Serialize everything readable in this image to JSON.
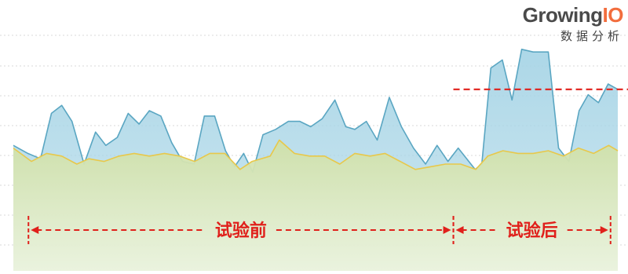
{
  "brand": {
    "name_main": "Growing",
    "name_accent": "IO",
    "subtitle": "数据分析"
  },
  "colors": {
    "upper_area": "#a8d5e6",
    "upper_line": "#5aa6c2",
    "lower_area": "#cfe0a8",
    "lower_line": "#e8c84a",
    "threshold": "#e0201b",
    "grid": "#d8d8d8",
    "accent": "#f26d3d"
  },
  "chart_data": {
    "type": "area",
    "title": "",
    "xlabel": "",
    "ylabel": "",
    "grid": true,
    "xlim": [
      0,
      100
    ],
    "ylim": [
      0,
      100
    ],
    "series": [
      {
        "values": [
          [
            0,
            47
          ],
          [
            2.4,
            44
          ],
          [
            4.5,
            42
          ],
          [
            6.3,
            59
          ],
          [
            8,
            62
          ],
          [
            9.7,
            56
          ],
          [
            11.7,
            40
          ],
          [
            13.6,
            52
          ],
          [
            15.3,
            47
          ],
          [
            17.2,
            50
          ],
          [
            19,
            59
          ],
          [
            20.8,
            55
          ],
          [
            22.5,
            60
          ],
          [
            24.4,
            58
          ],
          [
            26.2,
            48
          ],
          [
            28,
            41
          ],
          [
            29.9,
            40
          ],
          [
            31.6,
            58
          ],
          [
            33.3,
            58
          ],
          [
            35.1,
            45
          ],
          [
            36.6,
            39
          ],
          [
            38.1,
            44
          ],
          [
            39.6,
            37
          ],
          [
            41.3,
            51
          ],
          [
            43.4,
            53
          ],
          [
            45.5,
            56
          ],
          [
            47.4,
            56
          ],
          [
            49.2,
            54
          ],
          [
            51.1,
            57
          ],
          [
            53.2,
            64
          ],
          [
            55,
            54
          ],
          [
            56.5,
            53
          ],
          [
            58.4,
            56
          ],
          [
            60.2,
            49
          ],
          [
            62.2,
            65
          ],
          [
            64.2,
            54
          ],
          [
            66.2,
            46
          ],
          [
            68.2,
            40
          ],
          [
            70.1,
            47
          ],
          [
            71.9,
            41
          ],
          [
            73.6,
            46
          ],
          [
            76.4,
            38
          ],
          [
            77.5,
            40
          ],
          [
            79,
            76
          ],
          [
            80.9,
            79
          ],
          [
            82.5,
            64
          ],
          [
            84.1,
            83
          ],
          [
            86,
            82
          ],
          [
            88.5,
            82
          ],
          [
            90.2,
            46
          ],
          [
            91.9,
            41
          ],
          [
            93.6,
            60
          ],
          [
            95.1,
            66
          ],
          [
            96.8,
            63
          ],
          [
            98.4,
            70
          ],
          [
            100,
            68
          ]
        ]
      },
      {
        "values": [
          [
            0,
            46
          ],
          [
            3,
            41
          ],
          [
            5.5,
            44
          ],
          [
            8,
            43
          ],
          [
            10.5,
            40
          ],
          [
            12.5,
            42
          ],
          [
            15,
            41
          ],
          [
            17.5,
            43
          ],
          [
            20,
            44
          ],
          [
            22.5,
            43
          ],
          [
            25,
            44
          ],
          [
            27.5,
            43
          ],
          [
            30,
            41
          ],
          [
            32.5,
            44
          ],
          [
            35,
            44
          ],
          [
            37.5,
            38
          ],
          [
            39.5,
            41
          ],
          [
            42.5,
            43
          ],
          [
            44,
            49
          ],
          [
            46.5,
            44
          ],
          [
            49,
            43
          ],
          [
            51.5,
            43
          ],
          [
            54,
            40
          ],
          [
            56.5,
            44
          ],
          [
            59,
            43
          ],
          [
            61.5,
            44
          ],
          [
            64,
            41
          ],
          [
            66.5,
            38
          ],
          [
            69,
            39
          ],
          [
            71.5,
            40
          ],
          [
            74,
            40
          ],
          [
            76.5,
            38
          ],
          [
            78.5,
            43
          ],
          [
            81,
            45
          ],
          [
            83.5,
            44
          ],
          [
            86,
            44
          ],
          [
            88.5,
            45
          ],
          [
            91,
            43
          ],
          [
            93.5,
            46
          ],
          [
            96,
            44
          ],
          [
            98.5,
            47
          ],
          [
            100,
            45
          ]
        ]
      }
    ],
    "threshold_y": 68,
    "annotations": [
      {
        "label": "试验前",
        "x_start": 2.5,
        "x_end": 72.8
      },
      {
        "label": "试验后",
        "x_start": 72.8,
        "x_end": 98.8
      }
    ]
  }
}
